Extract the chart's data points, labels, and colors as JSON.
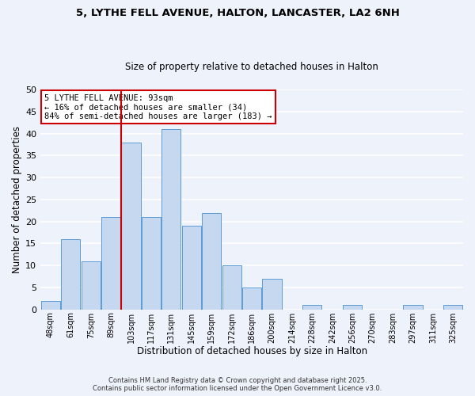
{
  "title_line1": "5, LYTHE FELL AVENUE, HALTON, LANCASTER, LA2 6NH",
  "title_line2": "Size of property relative to detached houses in Halton",
  "xlabel": "Distribution of detached houses by size in Halton",
  "ylabel": "Number of detached properties",
  "bar_labels": [
    "48sqm",
    "61sqm",
    "75sqm",
    "89sqm",
    "103sqm",
    "117sqm",
    "131sqm",
    "145sqm",
    "159sqm",
    "172sqm",
    "186sqm",
    "200sqm",
    "214sqm",
    "228sqm",
    "242sqm",
    "256sqm",
    "270sqm",
    "283sqm",
    "297sqm",
    "311sqm",
    "325sqm"
  ],
  "bar_values": [
    2,
    16,
    11,
    21,
    38,
    21,
    41,
    19,
    22,
    10,
    5,
    7,
    0,
    1,
    0,
    1,
    0,
    0,
    1,
    0,
    1
  ],
  "bar_color": "#c5d8f0",
  "bar_edge_color": "#5b9bd5",
  "vline_x": 3.5,
  "vline_color": "#cc0000",
  "annotation_title": "5 LYTHE FELL AVENUE: 93sqm",
  "annotation_line2": "← 16% of detached houses are smaller (34)",
  "annotation_line3": "84% of semi-detached houses are larger (183) →",
  "annotation_box_color": "#ffffff",
  "annotation_box_edge": "#cc0000",
  "ylim": [
    0,
    50
  ],
  "yticks": [
    0,
    5,
    10,
    15,
    20,
    25,
    30,
    35,
    40,
    45,
    50
  ],
  "footer_line1": "Contains HM Land Registry data © Crown copyright and database right 2025.",
  "footer_line2": "Contains public sector information licensed under the Open Government Licence v3.0.",
  "background_color": "#eef2fb",
  "grid_color": "#ffffff"
}
